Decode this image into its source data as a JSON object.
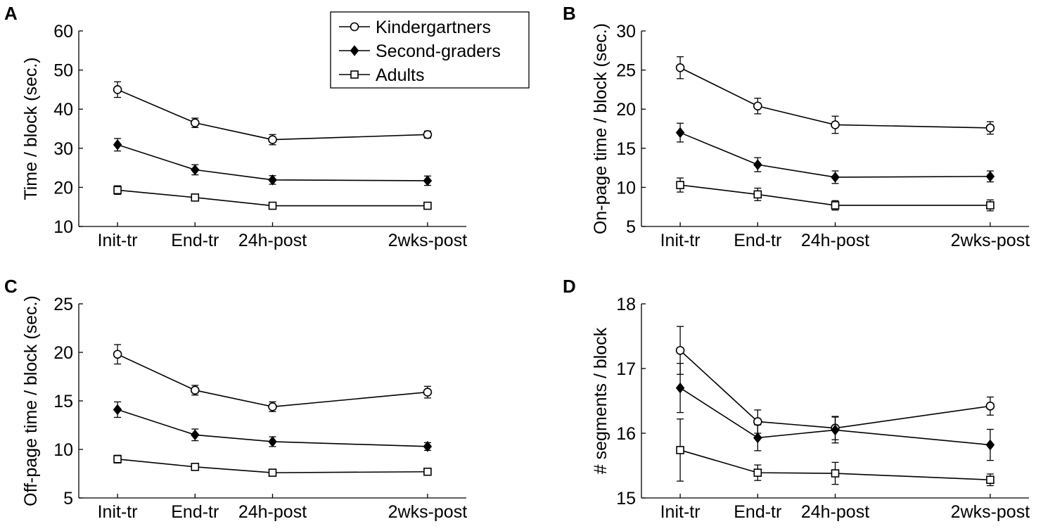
{
  "legend": {
    "entries": [
      {
        "label": "Kindergartners",
        "marker": "circle-open"
      },
      {
        "label": "Second-graders",
        "marker": "diamond-filled"
      },
      {
        "label": "Adults",
        "marker": "square-open"
      }
    ]
  },
  "chart_data": [
    {
      "panel": "A",
      "type": "line",
      "categories": [
        "Init-tr",
        "End-tr",
        "24h-post",
        "2wks-post"
      ],
      "x": [
        1,
        2,
        3,
        5
      ],
      "ylabel": "Time / block (sec.)",
      "xlabel": "",
      "ylim": [
        10,
        60
      ],
      "yticks": [
        10,
        20,
        30,
        40,
        50,
        60
      ],
      "series": [
        {
          "name": "Kindergartners",
          "marker": "circle-open",
          "values": [
            45.0,
            36.5,
            32.2,
            33.5
          ],
          "errors": [
            2.0,
            1.2,
            1.3,
            0.9
          ]
        },
        {
          "name": "Second-graders",
          "marker": "diamond-filled",
          "values": [
            30.9,
            24.5,
            21.9,
            21.7
          ],
          "errors": [
            1.6,
            1.3,
            1.1,
            1.2
          ]
        },
        {
          "name": "Adults",
          "marker": "square-open",
          "values": [
            19.3,
            17.4,
            15.3,
            15.3
          ],
          "errors": [
            1.1,
            0.7,
            0.5,
            0.5
          ]
        }
      ]
    },
    {
      "panel": "B",
      "type": "line",
      "categories": [
        "Init-tr",
        "End-tr",
        "24h-post",
        "2wks-post"
      ],
      "x": [
        1,
        2,
        3,
        5
      ],
      "ylabel": "On-page time / block (sec.)",
      "xlabel": "",
      "ylim": [
        5,
        30
      ],
      "yticks": [
        5,
        10,
        15,
        20,
        25,
        30
      ],
      "series": [
        {
          "name": "Kindergartners",
          "marker": "circle-open",
          "values": [
            25.3,
            20.4,
            18.0,
            17.6
          ],
          "errors": [
            1.4,
            1.0,
            1.1,
            0.8
          ]
        },
        {
          "name": "Second-graders",
          "marker": "diamond-filled",
          "values": [
            17.0,
            12.9,
            11.3,
            11.4
          ],
          "errors": [
            1.2,
            0.9,
            0.8,
            0.7
          ]
        },
        {
          "name": "Adults",
          "marker": "square-open",
          "values": [
            10.3,
            9.1,
            7.7,
            7.7
          ],
          "errors": [
            0.9,
            0.8,
            0.6,
            0.7
          ]
        }
      ]
    },
    {
      "panel": "C",
      "type": "line",
      "categories": [
        "Init-tr",
        "End-tr",
        "24h-post",
        "2wks-post"
      ],
      "x": [
        1,
        2,
        3,
        5
      ],
      "ylabel": "Off-page time / block (sec.)",
      "xlabel": "",
      "ylim": [
        5,
        25
      ],
      "yticks": [
        5,
        10,
        15,
        20,
        25
      ],
      "series": [
        {
          "name": "Kindergartners",
          "marker": "circle-open",
          "values": [
            19.8,
            16.1,
            14.4,
            15.9
          ],
          "errors": [
            1.0,
            0.5,
            0.5,
            0.6
          ]
        },
        {
          "name": "Second-graders",
          "marker": "diamond-filled",
          "values": [
            14.1,
            11.5,
            10.8,
            10.3
          ],
          "errors": [
            0.8,
            0.6,
            0.5,
            0.4
          ]
        },
        {
          "name": "Adults",
          "marker": "square-open",
          "values": [
            9.0,
            8.2,
            7.6,
            7.7
          ],
          "errors": [
            0.4,
            0.3,
            0.3,
            0.3
          ]
        }
      ]
    },
    {
      "panel": "D",
      "type": "line",
      "categories": [
        "Init-tr",
        "End-tr",
        "24h-post",
        "2wks-post"
      ],
      "x": [
        1,
        2,
        3,
        5
      ],
      "ylabel": "# segments / block",
      "xlabel": "",
      "ylim": [
        15,
        18
      ],
      "yticks": [
        15,
        16,
        17,
        18
      ],
      "series": [
        {
          "name": "Kindergartners",
          "marker": "circle-open",
          "values": [
            17.28,
            16.18,
            16.08,
            16.42
          ],
          "errors": [
            0.37,
            0.18,
            0.18,
            0.14
          ]
        },
        {
          "name": "Second-graders",
          "marker": "diamond-filled",
          "values": [
            16.7,
            15.93,
            16.05,
            15.82
          ],
          "errors": [
            0.38,
            0.2,
            0.2,
            0.24
          ]
        },
        {
          "name": "Adults",
          "marker": "square-open",
          "values": [
            15.74,
            15.39,
            15.38,
            15.28
          ],
          "errors": [
            0.48,
            0.12,
            0.17,
            0.09
          ]
        }
      ]
    }
  ]
}
